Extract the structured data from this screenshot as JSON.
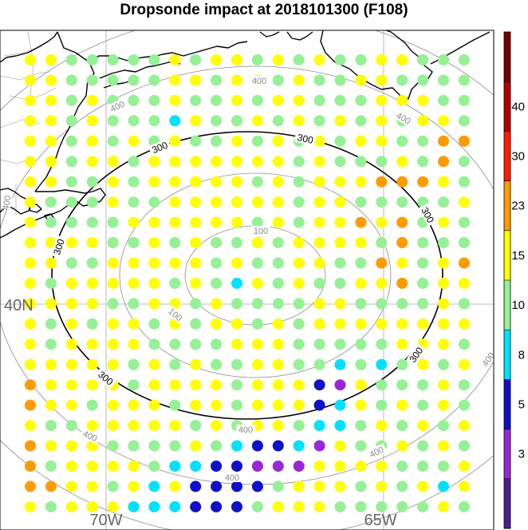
{
  "title": "Dropsonde impact at 2018101300 (F108)",
  "map_labels": {
    "lat_40n": "40N",
    "lon_70w": "70W",
    "lon_65w": "65W"
  },
  "contour_labels": {
    "r100": "100",
    "r300": "300",
    "r400": "400"
  },
  "colors": {
    "background": "#ffffff",
    "coast": "#000000",
    "border": "#b4b4b4",
    "grid": "#a8a8a8",
    "ring_gray": "#8c8c8c",
    "ring_300": "#000000"
  },
  "colorbar": {
    "levels": [
      {
        "label": "",
        "color": "#4b1e8c"
      },
      {
        "label": "3",
        "color": "#9a27d6"
      },
      {
        "label": "5",
        "color": "#1010c8"
      },
      {
        "label": "8",
        "color": "#00e1ff"
      },
      {
        "label": "10",
        "color": "#96f096"
      },
      {
        "label": "15",
        "color": "#ffff00"
      },
      {
        "label": "23",
        "color": "#ff9b00"
      },
      {
        "label": "30",
        "color": "#ff1e00"
      },
      {
        "label": "40",
        "color": "#b40000"
      },
      {
        "label": "",
        "color": "#780000"
      }
    ]
  },
  "grid": {
    "codes": [
      "YYGGGGGYGYYGYGYGGYYGGG",
      "YYGGGGGYYGYYGYGGYYGGGG",
      "YYGYGGGYGGYGYYGGGYYYGG",
      "YYGYGGGCYGGYGYGYGYGYYG",
      "YYGYGYGYGGYGYGYGYYGGOO",
      "YYGYYGYYYYYYYGYGGGYGOG",
      "YYGGYGYYYYYGYGYYYOOOYG",
      "YGGGYGGYYYYYYGYYGGGGGY",
      "YGGGGYYYYYYGYGYYOYOGYG",
      "YYYYGGYGYGGYGYYYYGOGGG",
      "YYGGYYYYYGYGGYYGGOYGYO",
      "YGYYYYYGYGCYGYGGYYOGYY",
      "YYYYGGYYGYGGGGYYGGGGYG",
      "YGYGYYGYGYYGYGYYYYYYYY",
      "YGYYYYGGGGYYYGGGGGYYYG",
      "YYYYYGYGYGGYYGGCGCGYGY",
      "OYYYYGYYYYGYYYBPYGGGYG",
      "OYYGYYYGYYGYYYBCYGYGYG",
      "YGGYYYYYGYGYYGCCGYGYGY",
      "OYYYGGGGYGCBBCPYGGYGYG",
      "OGYYYYGCCBBPPPYYYYGGGY",
      "OOYYGYCYBBBBGYYYGYGYCY",
      "YGYYYCCCBBBGYYYGGGGGYG"
    ],
    "palette": {
      "G": "#96f096",
      "Y": "#ffff00",
      "O": "#ff9b00",
      "C": "#00e1ff",
      "B": "#1010c8",
      "P": "#9a27d6"
    }
  }
}
